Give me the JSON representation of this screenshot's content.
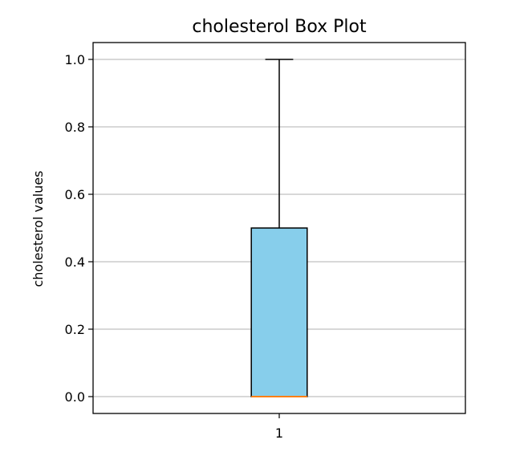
{
  "chart_data": {
    "type": "box",
    "title": "cholesterol Box Plot",
    "xlabel": "",
    "ylabel": "cholesterol values",
    "categories": [
      "1"
    ],
    "boxes": [
      {
        "category": "1",
        "whisker_low": 0.0,
        "q1": 0.0,
        "median": 0.0,
        "q3": 0.5,
        "whisker_high": 1.0
      }
    ],
    "ylim": [
      -0.05,
      1.05
    ],
    "yticks": [
      0.0,
      0.2,
      0.4,
      0.6,
      0.8,
      1.0
    ],
    "ytick_labels": [
      "0.0",
      "0.2",
      "0.4",
      "0.6",
      "0.8",
      "1.0"
    ],
    "grid": "horizontal",
    "colors": {
      "box_fill": "#87ceeb",
      "median_line": "#ff7f0e",
      "grid": "#b0b0b0",
      "axes": "#000000"
    }
  }
}
